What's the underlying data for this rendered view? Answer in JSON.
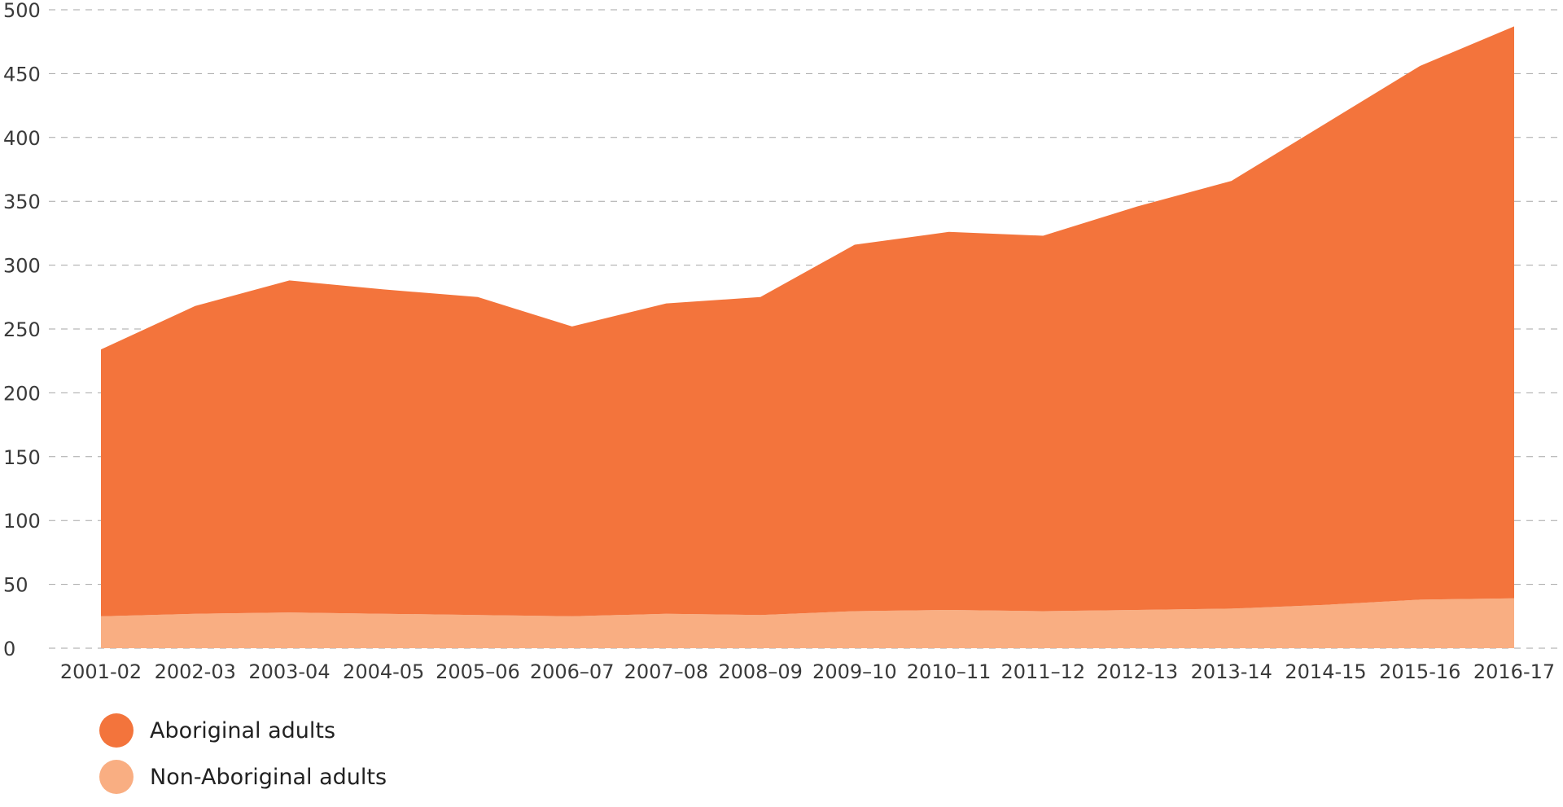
{
  "chart_data": {
    "type": "area",
    "stacked": true,
    "categories": [
      "2001-02",
      "2002-03",
      "2003-04",
      "2004-05",
      "2005–06",
      "2006–07",
      "2007–08",
      "2008–09",
      "2009–10",
      "2010–11",
      "2011–12",
      "2012-13",
      "2013-14",
      "2014-15",
      "2015-16",
      "2016-17"
    ],
    "series": [
      {
        "name": "Non-Aboriginal adults",
        "color": "#F9AE82",
        "values": [
          25,
          27,
          28,
          27,
          26,
          25,
          27,
          26,
          29,
          30,
          29,
          30,
          31,
          34,
          38,
          39
        ]
      },
      {
        "name": "Aboriginal adults",
        "color": "#F3743C",
        "values": [
          209,
          241,
          260,
          254,
          249,
          227,
          243,
          249,
          287,
          296,
          294,
          316,
          335,
          377,
          418,
          448
        ]
      }
    ],
    "totals": [
      234,
      268,
      288,
      281,
      275,
      252,
      270,
      275,
      316,
      326,
      323,
      346,
      366,
      411,
      456,
      487
    ],
    "ylim": [
      0,
      500
    ],
    "yticks": [
      0,
      50,
      100,
      150,
      200,
      250,
      300,
      350,
      400,
      450,
      500
    ],
    "grid": true,
    "legend_position": "bottom-left",
    "title": "",
    "xlabel": "",
    "ylabel": ""
  },
  "legend": {
    "items": [
      {
        "label": "Aboriginal adults",
        "color": "#F3743C"
      },
      {
        "label": "Non-Aboriginal adults",
        "color": "#F9AE82"
      }
    ]
  }
}
